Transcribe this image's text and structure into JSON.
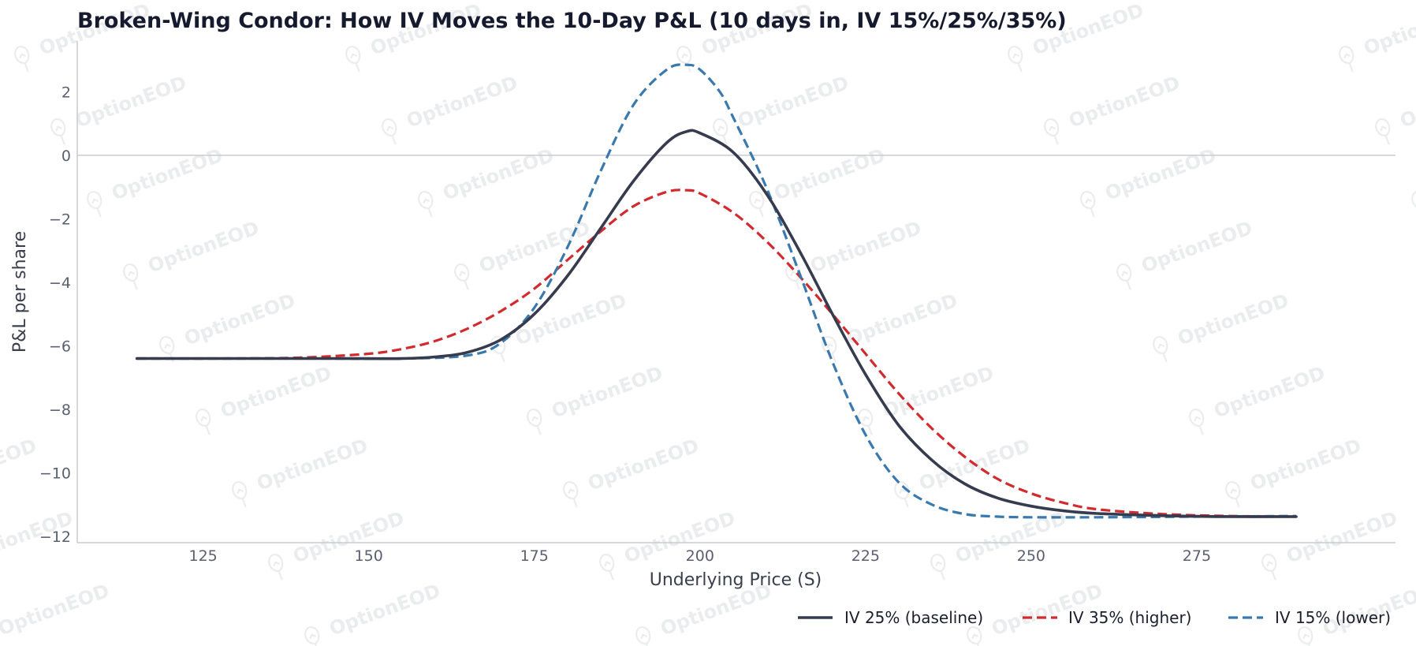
{
  "watermark": {
    "text": "OptionEOD",
    "icon": "bulb-icon"
  },
  "chart_data": {
    "type": "line",
    "title": "Broken-Wing Condor: How IV Moves the 10-Day P&L (10 days in, IV 15%/25%/35%)",
    "xlabel": "Underlying Price (S)",
    "ylabel": "P&L per share",
    "xlim": [
      106,
      305
    ],
    "ylim": [
      -12.2,
      3.6
    ],
    "x_ticks": [
      125,
      150,
      175,
      200,
      225,
      250,
      275
    ],
    "x_tick_labels": [
      "125",
      "150",
      "175",
      "200",
      "225",
      "250",
      "275"
    ],
    "y_ticks": [
      2,
      0,
      -2,
      -4,
      -6,
      -8,
      -10,
      -12
    ],
    "y_tick_labels": [
      "2",
      "0",
      "−2",
      "−4",
      "−6",
      "−8",
      "−10",
      "−12"
    ],
    "grid": false,
    "zero_line": true,
    "legend_position": "bottom-right",
    "series": [
      {
        "name": "IV 25% (baseline)",
        "color": "#363b4e",
        "style": "solid",
        "x": [
          115,
          130,
          145,
          155,
          160,
          165,
          170,
          175,
          180,
          185,
          190,
          195,
          198,
          200,
          205,
          210,
          215,
          220,
          225,
          230,
          235,
          240,
          245,
          250,
          255,
          260,
          270,
          280,
          290
        ],
        "y": [
          -6.4,
          -6.4,
          -6.4,
          -6.4,
          -6.35,
          -6.2,
          -5.8,
          -5.0,
          -3.8,
          -2.3,
          -0.8,
          0.4,
          0.75,
          0.7,
          0.1,
          -1.2,
          -3.0,
          -5.0,
          -6.9,
          -8.5,
          -9.6,
          -10.35,
          -10.8,
          -11.05,
          -11.2,
          -11.28,
          -11.35,
          -11.38,
          -11.38
        ]
      },
      {
        "name": "IV 35% (higher)",
        "color": "#d12a2f",
        "style": "dashed",
        "x": [
          115,
          130,
          140,
          150,
          155,
          160,
          165,
          170,
          175,
          180,
          185,
          190,
          195,
          198,
          200,
          205,
          210,
          215,
          220,
          225,
          230,
          235,
          240,
          245,
          250,
          255,
          260,
          270,
          280,
          290
        ],
        "y": [
          -6.4,
          -6.4,
          -6.37,
          -6.25,
          -6.1,
          -5.85,
          -5.45,
          -4.9,
          -4.2,
          -3.3,
          -2.4,
          -1.6,
          -1.15,
          -1.1,
          -1.2,
          -1.8,
          -2.7,
          -3.8,
          -5.0,
          -6.25,
          -7.5,
          -8.6,
          -9.5,
          -10.2,
          -10.65,
          -10.95,
          -11.15,
          -11.3,
          -11.36,
          -11.38
        ]
      },
      {
        "name": "IV 15% (lower)",
        "color": "#3a79ad",
        "style": "dashed",
        "x": [
          115,
          140,
          155,
          165,
          170,
          175,
          180,
          185,
          190,
          195,
          198,
          200,
          203,
          205,
          210,
          215,
          220,
          225,
          230,
          235,
          240,
          245,
          250,
          260,
          275,
          290
        ],
        "y": [
          -6.4,
          -6.4,
          -6.4,
          -6.3,
          -5.9,
          -4.8,
          -2.9,
          -0.5,
          1.6,
          2.7,
          2.85,
          2.7,
          2.0,
          1.2,
          -1.0,
          -3.7,
          -6.5,
          -8.8,
          -10.3,
          -11.0,
          -11.3,
          -11.38,
          -11.4,
          -11.4,
          -11.38,
          -11.36
        ]
      }
    ]
  }
}
